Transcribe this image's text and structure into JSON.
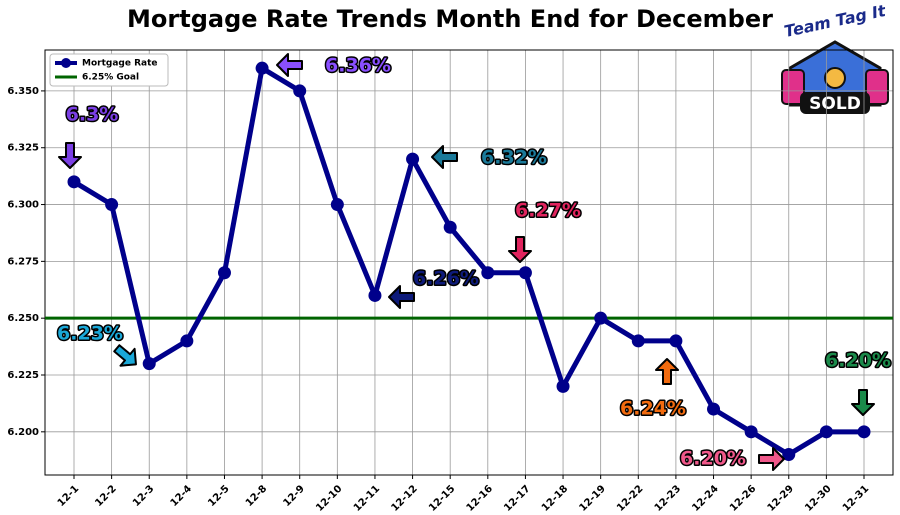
{
  "chart_data": {
    "type": "line",
    "title": "Mortgage Rate Trends Month End for December",
    "categories": [
      "12-1",
      "12-2",
      "12-3",
      "12-4",
      "12-5",
      "12-8",
      "12-9",
      "12-10",
      "12-11",
      "12-12",
      "12-15",
      "12-16",
      "12-17",
      "12-18",
      "12-19",
      "12-22",
      "12-23",
      "12-24",
      "12-26",
      "12-29",
      "12-30",
      "12-31"
    ],
    "series": [
      {
        "name": "Mortgage Rate",
        "color": "#00008b",
        "values": [
          6.31,
          6.3,
          6.23,
          6.24,
          6.27,
          6.36,
          6.35,
          6.3,
          6.26,
          6.32,
          6.29,
          6.27,
          6.27,
          6.22,
          6.25,
          6.24,
          6.24,
          6.21,
          6.2,
          6.19,
          6.2,
          6.2
        ]
      }
    ],
    "reference_line": {
      "name": "6.25% Goal",
      "value": 6.25,
      "color": "#006400"
    },
    "ylim": [
      6.181,
      6.368
    ],
    "yticks": [
      {
        "value": 6.2,
        "label": "6.200"
      },
      {
        "value": 6.225,
        "label": "6.225"
      },
      {
        "value": 6.25,
        "label": "6.250"
      },
      {
        "value": 6.275,
        "label": "6.275"
      },
      {
        "value": 6.3,
        "label": "6.300"
      },
      {
        "value": 6.325,
        "label": "6.325"
      },
      {
        "value": 6.35,
        "label": "6.350"
      }
    ],
    "grid": true,
    "legend": "upper left",
    "annotations": [
      {
        "text": "6.3%",
        "color": "#7b3fe4"
      },
      {
        "text": "6.36%",
        "color": "#8a4fff"
      },
      {
        "text": "6.32%",
        "color": "#1a7a9a"
      },
      {
        "text": "6.26%",
        "color": "#0d1a7a"
      },
      {
        "text": "6.27%",
        "color": "#e0245e"
      },
      {
        "text": "6.23%",
        "color": "#1aa8d8"
      },
      {
        "text": "6.24%",
        "color": "#f26b0f"
      },
      {
        "text": "6.20%",
        "color": "#f0588a"
      },
      {
        "text": "6.20%",
        "color": "#1a8a4a"
      }
    ]
  },
  "logo": {
    "top": "Team Tag It",
    "badge": "SOLD"
  }
}
